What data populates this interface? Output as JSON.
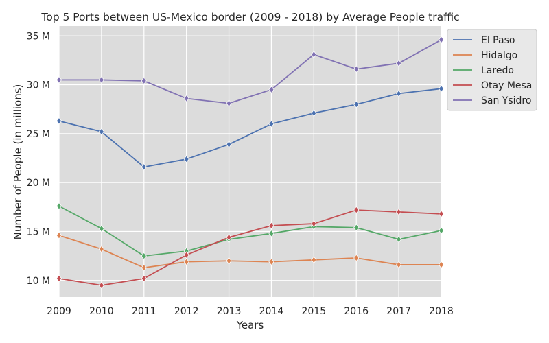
{
  "chart_data": {
    "type": "line",
    "title": "Top 5 Ports between US-Mexico border (2009 - 2018) by Average People traffic",
    "xlabel": "Years",
    "ylabel": "Number of People (in millions)",
    "x": [
      2009,
      2010,
      2011,
      2012,
      2013,
      2014,
      2015,
      2016,
      2017,
      2018
    ],
    "x_tick_labels": [
      "2009",
      "2010",
      "2011",
      "2012",
      "2013",
      "2014",
      "2015",
      "2016",
      "2017",
      "2018"
    ],
    "xlim": [
      2009,
      2018
    ],
    "ylim": [
      8.3,
      36.0
    ],
    "y_ticks": [
      10,
      15,
      20,
      25,
      30,
      35
    ],
    "y_tick_labels": [
      "10 M",
      "15 M",
      "20 M",
      "25 M",
      "30 M",
      "35 M"
    ],
    "grid": true,
    "legend_position": "top-right-outside",
    "marker": "diamond",
    "series": [
      {
        "name": "El Paso",
        "color": "#4c72b0",
        "values": [
          26.3,
          25.2,
          21.6,
          22.4,
          23.9,
          26.0,
          27.1,
          28.0,
          29.1,
          29.6
        ]
      },
      {
        "name": "Hidalgo",
        "color": "#dd8452",
        "values": [
          14.6,
          13.2,
          11.3,
          11.9,
          12.0,
          11.9,
          12.1,
          12.3,
          11.6,
          11.6
        ]
      },
      {
        "name": "Laredo",
        "color": "#55a868",
        "values": [
          17.6,
          15.3,
          12.5,
          13.0,
          14.2,
          14.8,
          15.5,
          15.4,
          14.2,
          15.1
        ]
      },
      {
        "name": "Otay Mesa",
        "color": "#c44e52",
        "values": [
          10.2,
          9.5,
          10.2,
          12.6,
          14.4,
          15.6,
          15.8,
          17.2,
          17.0,
          16.8
        ]
      },
      {
        "name": "San Ysidro",
        "color": "#8172b3",
        "values": [
          30.5,
          30.5,
          30.4,
          28.6,
          28.1,
          29.5,
          33.1,
          31.6,
          32.2,
          34.6
        ]
      }
    ]
  }
}
